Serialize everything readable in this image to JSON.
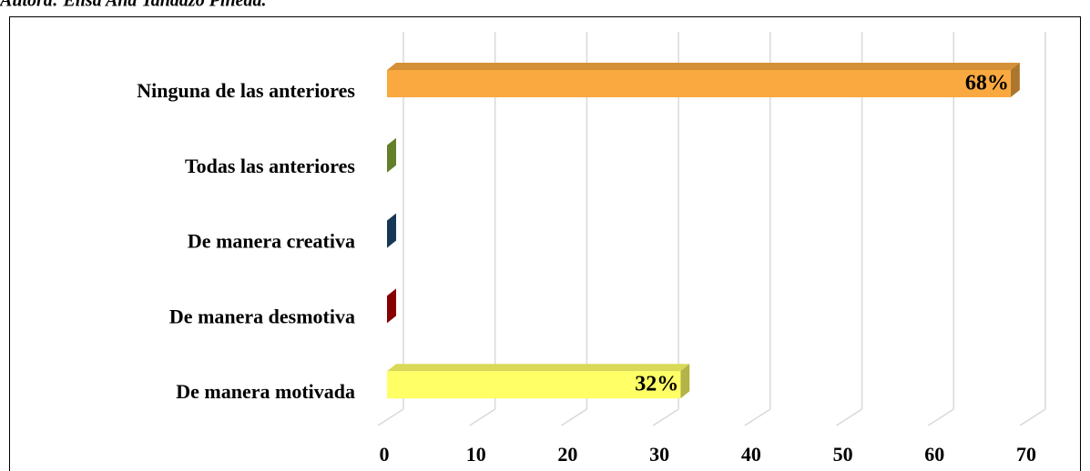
{
  "chart_data": {
    "type": "bar",
    "orientation": "horizontal",
    "source": "Autora: Elisa Ana Tandazo Pineda.",
    "categories": [
      "De manera motivada",
      "De manera desmotiva",
      "De manera creativa",
      "Todas las anteriores",
      "Ninguna de las anteriores"
    ],
    "values": [
      32,
      0,
      0,
      0,
      68
    ],
    "value_labels": [
      "32%",
      null,
      null,
      null,
      "68%"
    ],
    "colors": [
      "#ffff66",
      "#c00000",
      "#1f4e79",
      "#8db53a",
      "#f9a93f"
    ],
    "xlim": [
      0,
      70
    ],
    "xticks": [
      0,
      10,
      20,
      30,
      40,
      50,
      60,
      70
    ],
    "grid": true
  }
}
